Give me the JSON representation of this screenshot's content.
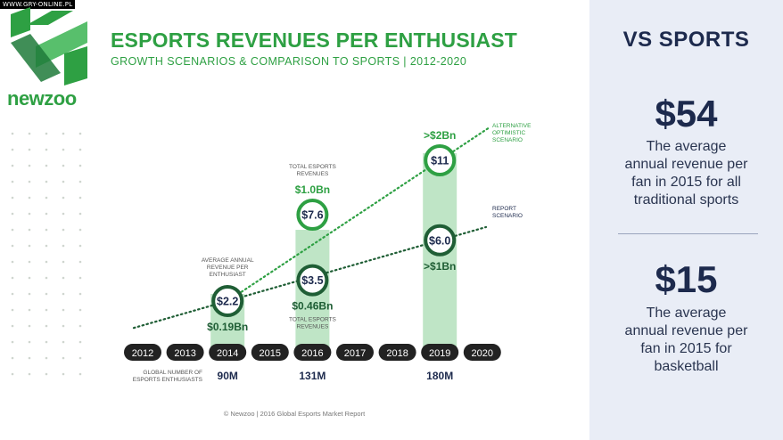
{
  "watermark": "WWW.GRY-ONLINE.PL",
  "brand": {
    "name": "newzoo",
    "accent": "#2ea043",
    "dark_green": "#1f5e35",
    "navy": "#1d2a4d"
  },
  "header": {
    "title": "ESPORTS REVENUES PER ENTHUSIAST",
    "subtitle": "GROWTH SCENARIOS & COMPARISON TO SPORTS | 2012-2020"
  },
  "footer": "© Newzoo | 2016 Global Esports Market Report",
  "sidebar": {
    "heading": "VS SPORTS",
    "stats": [
      {
        "value": "$54",
        "text_lines": [
          "The average",
          "annual revenue per",
          "fan in 2015 for all",
          "traditional sports"
        ]
      },
      {
        "value": "$15",
        "text_lines": [
          "The average",
          "annual revenue per",
          "fan in 2015 for",
          "basketball"
        ]
      }
    ]
  },
  "chart_data": {
    "type": "bar",
    "title": "ESPORTS REVENUES PER ENTHUSIAST",
    "years": [
      "2012",
      "2013",
      "2014",
      "2015",
      "2016",
      "2017",
      "2018",
      "2019",
      "2020"
    ],
    "enthusiasts_label": [
      "GLOBAL NUMBER OF",
      "ESPORTS ENTHUSIASTS"
    ],
    "enthusiasts": [
      {
        "year": "2014",
        "label": "90M"
      },
      {
        "year": "2016",
        "label": "131M"
      },
      {
        "year": "2019",
        "label": "180M"
      }
    ],
    "bars": [
      {
        "year": "2014",
        "enthusiasts_m": 90
      },
      {
        "year": "2016",
        "enthusiasts_m": 131
      },
      {
        "year": "2019",
        "enthusiasts_m": 180
      }
    ],
    "arpu_label": [
      "AVERAGE ANNUAL",
      "REVENUE PER",
      "ENTHUSIAST"
    ],
    "total_revenue_label": [
      "TOTAL ESPORTS",
      "REVENUES"
    ],
    "report_scenario": {
      "name_lines": [
        "REPORT",
        "SCENARIO"
      ],
      "points": [
        {
          "year": "2014",
          "arpu": 2.2,
          "label": "$2.2",
          "revenue_label": "$0.19Bn"
        },
        {
          "year": "2016",
          "arpu": 3.5,
          "label": "$3.5",
          "revenue_label": "$0.46Bn"
        },
        {
          "year": "2019",
          "arpu": 6.0,
          "label": "$6.0",
          "revenue_label": ">$1Bn"
        }
      ]
    },
    "optimistic_scenario": {
      "name_lines": [
        "ALTERNATIVE",
        "OPTIMISTIC",
        "SCENARIO"
      ],
      "points": [
        {
          "year": "2016",
          "arpu": 7.6,
          "label": "$7.6",
          "revenue_label": "$1.0Bn"
        },
        {
          "year": "2019",
          "arpu": 11,
          "label": "$11",
          "revenue_label": ">$2Bn"
        }
      ]
    }
  }
}
